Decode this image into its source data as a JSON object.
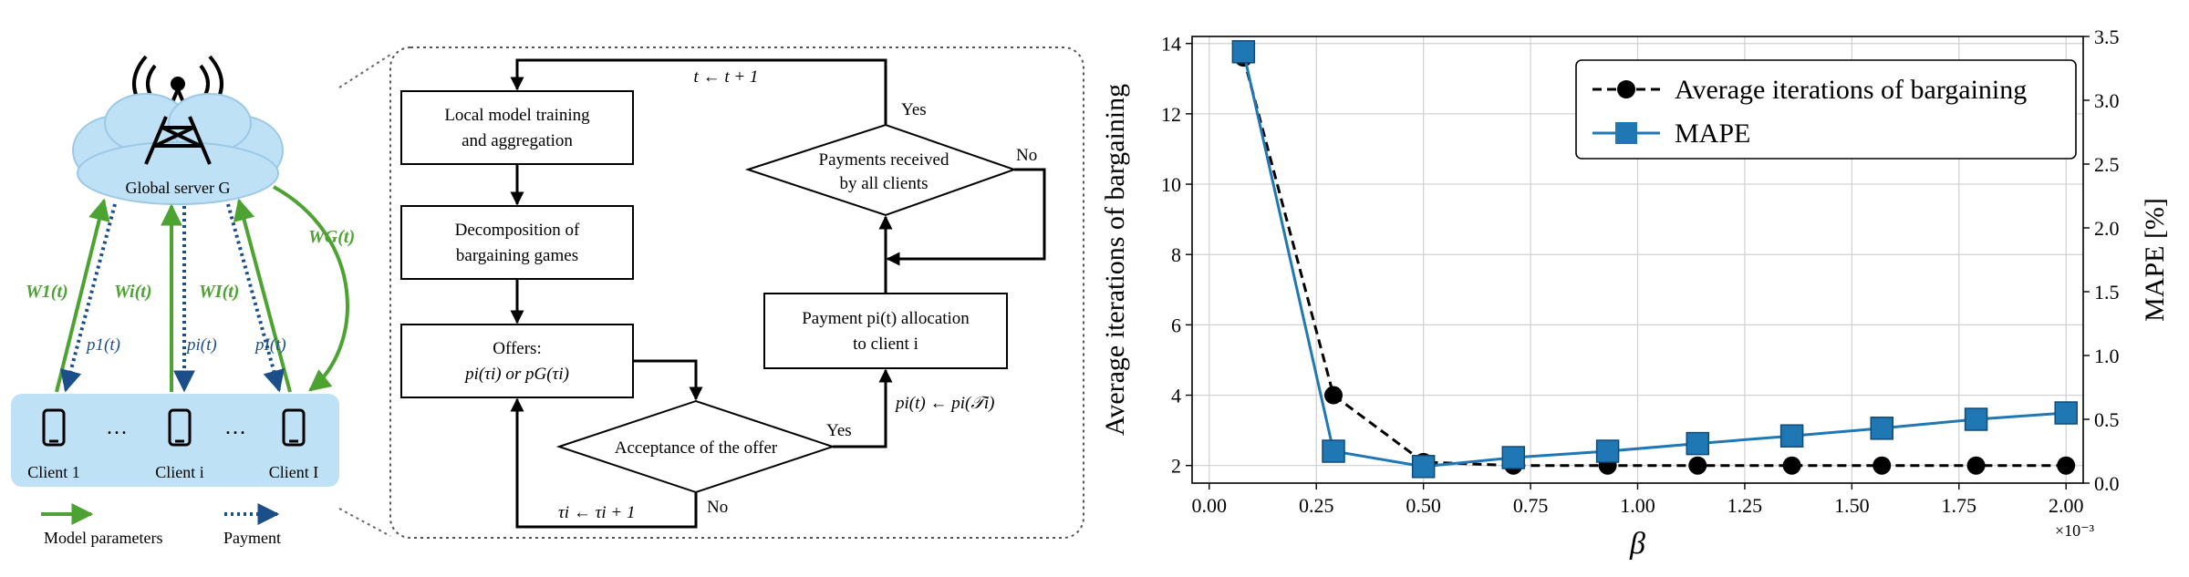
{
  "system": {
    "server_label": "Global server G",
    "clients": [
      "Client 1",
      "Client i",
      "Client I"
    ],
    "ellipsis": "…",
    "upload_labels": [
      "W1(t)",
      "Wi(t)",
      "WI(t)"
    ],
    "payment_labels": [
      "p1(t)",
      "pi(t)",
      "pI(t)"
    ],
    "broadcast_label": "WG(t)",
    "legend": {
      "model": "Model parameters",
      "payment": "Payment"
    },
    "colors": {
      "model": "#4da331",
      "payment": "#1b4f8a",
      "cloud": "#bfe1f5",
      "panel": "#bfe1f5"
    }
  },
  "flow": {
    "steps": {
      "local_training": [
        "Local model training",
        "and aggregation"
      ],
      "decomposition": [
        "Decomposition of",
        "bargaining games"
      ],
      "offers": [
        "Offers:",
        "pi(τi) or pG(τi)"
      ],
      "acceptance": "Acceptance of the offer",
      "payment_alloc": [
        "Payment pi(t) allocation",
        "to client i"
      ],
      "payments_received": [
        "Payments received",
        "by all clients"
      ]
    },
    "labels": {
      "time_update": "t ← t + 1",
      "tau_update": "τi ← τi + 1",
      "payment_update": "pi(t) ← pi(𝒯i)",
      "yes": "Yes",
      "no": "No"
    }
  },
  "chart_data": {
    "type": "line",
    "x": [
      0.08,
      0.29,
      0.5,
      0.71,
      0.93,
      1.14,
      1.36,
      1.57,
      1.79,
      2.0
    ],
    "x_multiplier": "×10⁻³",
    "xlabel": "β",
    "ylabel_left": "Average iterations of bargaining",
    "ylabel_right": "MAPE [%]",
    "xlim": [
      -0.04,
      2.04
    ],
    "ylim_left": [
      1.5,
      14.2
    ],
    "ylim_right": [
      0.0,
      3.5
    ],
    "xticks": [
      "0.00",
      "0.25",
      "0.50",
      "0.75",
      "1.00",
      "1.25",
      "1.50",
      "1.75",
      "2.00"
    ],
    "yticks_left": [
      "2",
      "4",
      "6",
      "8",
      "10",
      "12",
      "14"
    ],
    "yticks_right": [
      "0.0",
      "0.5",
      "1.0",
      "1.5",
      "2.0",
      "2.5",
      "3.0",
      "3.5"
    ],
    "grid": true,
    "legend_position": "top-right",
    "series": [
      {
        "name": "Average iterations of bargaining",
        "axis": "left",
        "marker": "circle",
        "style": "dashed",
        "color": "#000000",
        "values": [
          13.6,
          4.0,
          2.1,
          2.0,
          2.0,
          2.0,
          2.0,
          2.0,
          2.0,
          2.0
        ]
      },
      {
        "name": "MAPE",
        "axis": "right",
        "marker": "square",
        "style": "solid",
        "color": "#1f77b4",
        "values": [
          3.38,
          0.25,
          0.13,
          0.2,
          0.25,
          0.31,
          0.37,
          0.43,
          0.5,
          0.55
        ]
      }
    ]
  }
}
